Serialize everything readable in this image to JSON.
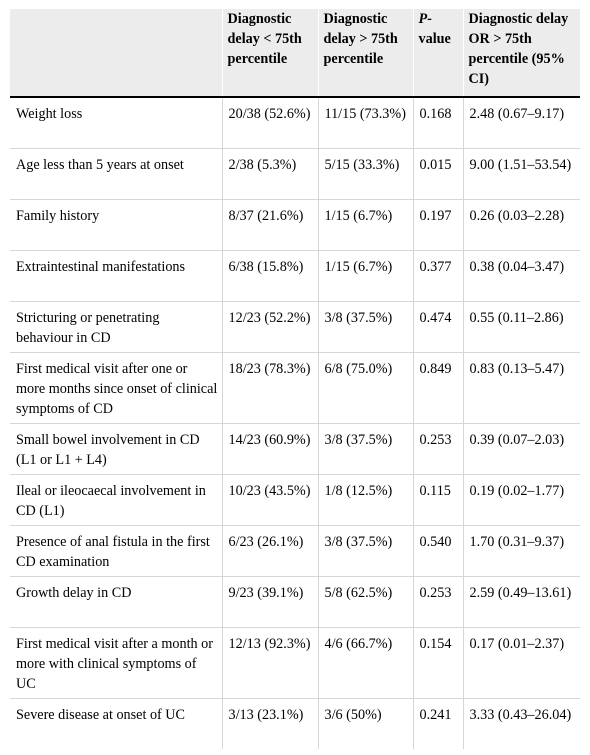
{
  "table": {
    "headers": [
      {
        "text": "",
        "italic_prefix": ""
      },
      {
        "text": "Diagnostic delay < 75th percentile",
        "italic_prefix": ""
      },
      {
        "text": "Diagnostic delay > 75th percentile",
        "italic_prefix": ""
      },
      {
        "text": "-value",
        "italic_prefix": "P"
      },
      {
        "text": "Diagnostic delay OR > 75th percentile (95% CI)",
        "italic_prefix": ""
      }
    ],
    "rows": [
      {
        "label": "Weight loss",
        "below": "20/38 (52.6%)",
        "above": "11/15 (73.3%)",
        "p": "0.168",
        "or": "2.48 (0.67–9.17)"
      },
      {
        "label": "Age less than 5 years at onset",
        "below": "2/38 (5.3%)",
        "above": "5/15 (33.3%)",
        "p": "0.015",
        "or": "9.00 (1.51–53.54)"
      },
      {
        "label": "Family history",
        "below": "8/37 (21.6%)",
        "above": "1/15 (6.7%)",
        "p": "0.197",
        "or": "0.26 (0.03–2.28)"
      },
      {
        "label": "Extraintestinal manifestations",
        "below": "6/38 (15.8%)",
        "above": "1/15 (6.7%)",
        "p": "0.377",
        "or": "0.38 (0.04–3.47)"
      },
      {
        "label": "Stricturing or penetrating behaviour in CD",
        "below": "12/23 (52.2%)",
        "above": "3/8 (37.5%)",
        "p": "0.474",
        "or": "0.55 (0.11–2.86)"
      },
      {
        "label": "First medical visit after one or more months since onset of clinical symptoms of CD",
        "below": "18/23 (78.3%)",
        "above": "6/8 (75.0%)",
        "p": "0.849",
        "or": "0.83 (0.13–5.47)"
      },
      {
        "label": "Small bowel involvement in CD (L1 or L1 + L4)",
        "below": "14/23 (60.9%)",
        "above": "3/8 (37.5%)",
        "p": "0.253",
        "or": "0.39 (0.07–2.03)"
      },
      {
        "label": "Ileal or ileocaecal involvement in CD (L1)",
        "below": "10/23 (43.5%)",
        "above": "1/8 (12.5%)",
        "p": "0.115",
        "or": "0.19 (0.02–1.77)"
      },
      {
        "label": "Presence of anal fistula in the first CD examination",
        "below": "6/23 (26.1%)",
        "above": "3/8 (37.5%)",
        "p": "0.540",
        "or": "1.70 (0.31–9.37)"
      },
      {
        "label": "Growth delay in CD",
        "below": "9/23 (39.1%)",
        "above": "5/8 (62.5%)",
        "p": "0.253",
        "or": "2.59 (0.49–13.61)"
      },
      {
        "label": "First medical visit after a month or more with clinical symptoms of UC",
        "below": "12/13 (92.3%)",
        "above": "4/6 (66.7%)",
        "p": "0.154",
        "or": "0.17 (0.01–2.37)"
      },
      {
        "label": "Severe disease at onset of UC",
        "below": "3/13 (23.1%)",
        "above": "3/6 (50%)",
        "p": "0.241",
        "or": "3.33 (0.43–26.04)"
      }
    ]
  }
}
